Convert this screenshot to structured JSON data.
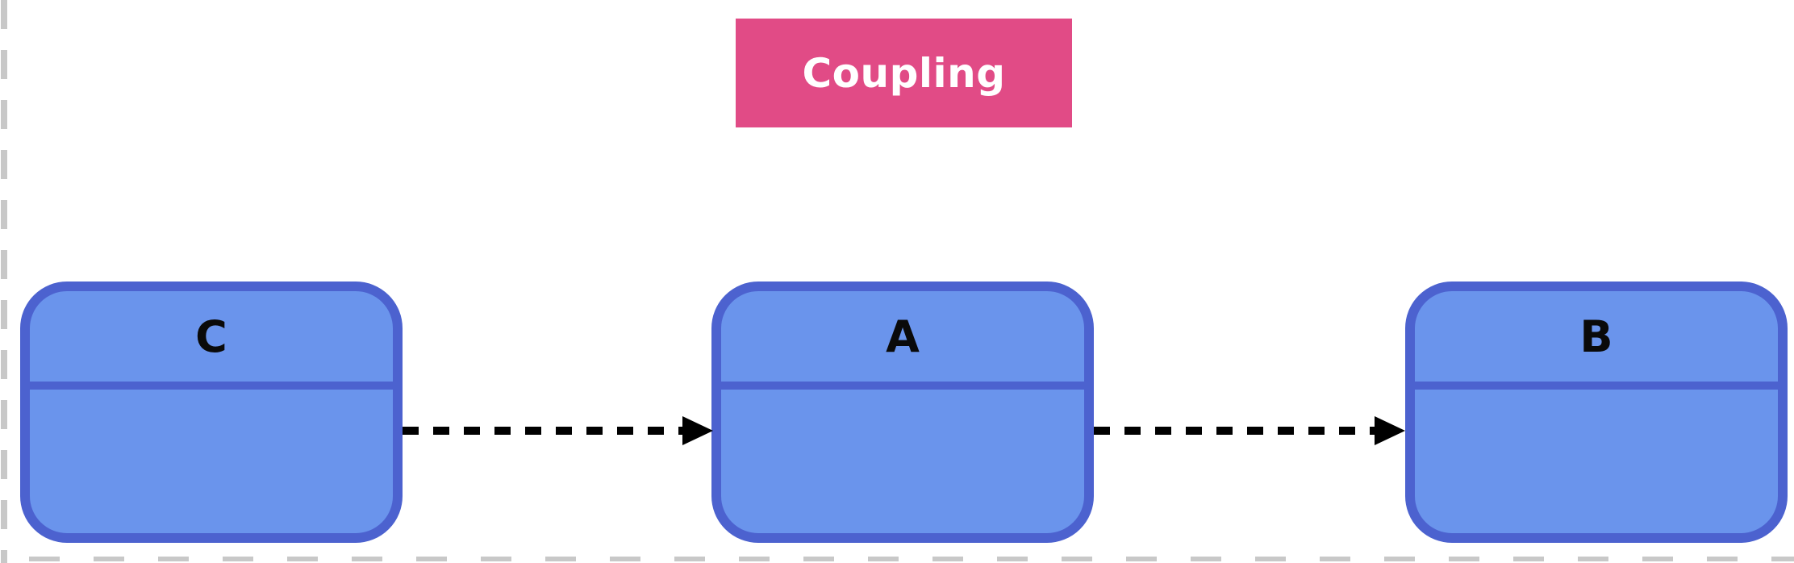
{
  "title": "Coupling",
  "nodes": [
    {
      "id": "C",
      "label": "C"
    },
    {
      "id": "A",
      "label": "A"
    },
    {
      "id": "B",
      "label": "B"
    }
  ],
  "edges": [
    {
      "from": "C",
      "to": "A",
      "style": "dashed",
      "arrowhead": "filled-triangle"
    },
    {
      "from": "A",
      "to": "B",
      "style": "dashed",
      "arrowhead": "filled-triangle"
    }
  ],
  "colors": {
    "title_fill": "#e14b86",
    "title_text": "#ffffff",
    "node_fill": "#6a94ec",
    "node_border": "#4c62cf",
    "edge": "#000000",
    "frame_dash": "#c8c8c8"
  }
}
